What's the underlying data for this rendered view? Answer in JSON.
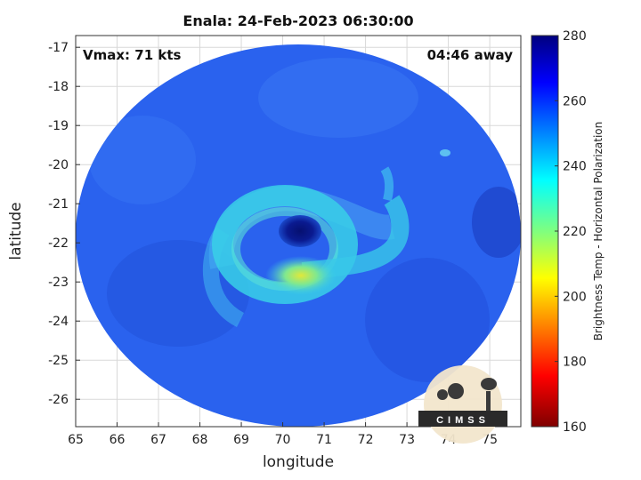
{
  "title": "Enala: 24-Feb-2023 06:30:00",
  "vmax_label": "Vmax: 71 kts",
  "time_away_label": "04:46 away",
  "xlabel": "longitude",
  "ylabel": "latitude",
  "x_ticks": [
    "65",
    "66",
    "67",
    "68",
    "69",
    "70",
    "71",
    "72",
    "73",
    "74",
    "75"
  ],
  "y_ticks": [
    "-17",
    "-18",
    "-19",
    "-20",
    "-21",
    "-22",
    "-23",
    "-24",
    "-25",
    "-26"
  ],
  "xlim": [
    65,
    75.75
  ],
  "ylim": [
    -26.7,
    -16.7
  ],
  "colorbar": {
    "label": "Brightness Temp - Horizontal Polarization",
    "ticks": [
      "280",
      "260",
      "240",
      "220",
      "200",
      "180",
      "160"
    ],
    "range": [
      160,
      280
    ],
    "colormap": "jet"
  },
  "storm": {
    "eye_center": [
      70.3,
      -21.75
    ],
    "warm_core_center": [
      70.4,
      -22.9
    ]
  },
  "logo_text": "CIMSS",
  "colors": {
    "background_swath": "#2a64f0",
    "eye": "#0a1a8a",
    "rainband": "#3ad8e8",
    "warm_core": "#d8e83a"
  }
}
